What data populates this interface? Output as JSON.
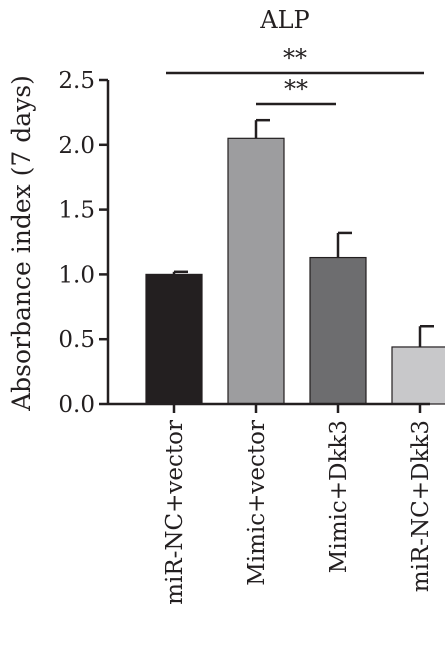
{
  "chart_data": {
    "type": "bar",
    "title": "ALP",
    "ylabel": "Absorbance index (7 days)",
    "xlabel": "",
    "categories": [
      "miR-NC+vector",
      "Mimic+vector",
      "Mimic+Dkk3",
      "miR-NC+Dkk3"
    ],
    "values": [
      1.0,
      2.05,
      1.13,
      0.44
    ],
    "errors": [
      0.02,
      0.14,
      0.19,
      0.16
    ],
    "colors": [
      "#231f20",
      "#9d9d9f",
      "#6d6d6f",
      "#c8c8ca"
    ],
    "ylim": [
      0,
      2.5
    ],
    "yticks": [
      "0.0",
      "0.5",
      "1.0",
      "1.5",
      "2.0",
      "2.5"
    ],
    "grid": false,
    "significance": [
      {
        "from": 0,
        "to": 3,
        "label": "**"
      },
      {
        "from": 1,
        "to": 2,
        "label": "**"
      }
    ]
  }
}
